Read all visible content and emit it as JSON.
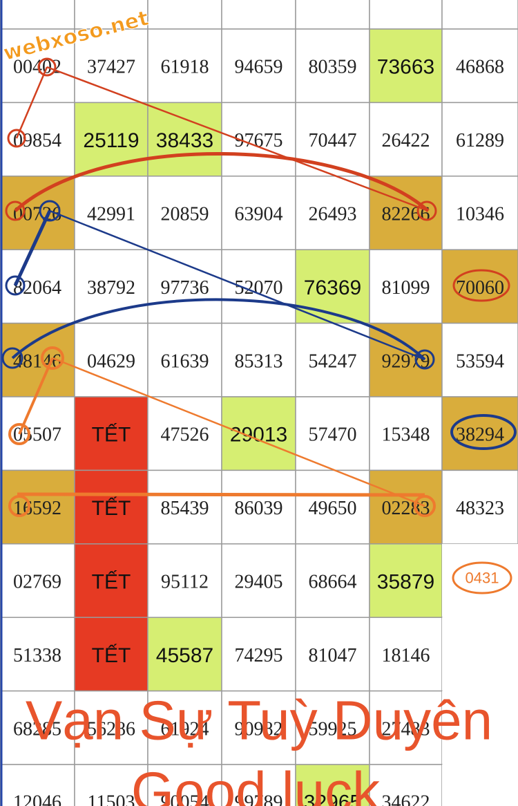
{
  "watermark": "webxoso.net",
  "note": "0431",
  "caption": [
    "Vạn Sự Tuỳ Duyên",
    "Good luck"
  ],
  "table": {
    "rows": [
      [
        null,
        null,
        null,
        null,
        null,
        null,
        null
      ],
      [
        "00402",
        "37427",
        "61918",
        "94659",
        "80359",
        {
          "text": "73663",
          "fill": "#d6ee72"
        },
        "46868"
      ],
      [
        "09854",
        {
          "text": "25119",
          "fill": "#d6ee72"
        },
        {
          "text": "38433",
          "fill": "#d6ee72"
        },
        "97675",
        "70447",
        "26422",
        "61289"
      ],
      [
        {
          "text": "00726",
          "fill": "#d9ad3c"
        },
        "42991",
        "20859",
        "63904",
        "26493",
        {
          "text": "82266",
          "fill": "#d9ad3c"
        },
        "10346"
      ],
      [
        "82064",
        "38792",
        "97736",
        "52070",
        {
          "text": "76369",
          "fill": "#d6ee72"
        },
        "81099",
        {
          "text": "70060",
          "fill": "#d9ad3c"
        }
      ],
      [
        {
          "text": "48146",
          "fill": "#d9ad3c"
        },
        "04629",
        "61639",
        "85313",
        "54247",
        {
          "text": "92979",
          "fill": "#d9ad3c"
        },
        "53594"
      ],
      [
        "05507",
        {
          "text": "TẾT",
          "fill": "#e63a23"
        },
        "47526",
        {
          "text": "29013",
          "fill": "#d6ee72"
        },
        "57470",
        "15348",
        {
          "text": "38294",
          "fill": "#d9ad3c"
        }
      ],
      [
        {
          "text": "16592",
          "fill": "#d9ad3c"
        },
        {
          "text": "TẾT",
          "fill": "#e63a23"
        },
        "85439",
        "86039",
        "49650",
        {
          "text": "02283",
          "fill": "#d9ad3c"
        },
        "48323"
      ],
      [
        "02769",
        {
          "text": "TẾT",
          "fill": "#e63a23"
        },
        "95112",
        "29405",
        "68664",
        {
          "text": "35879",
          "fill": "#d6ee72"
        },
        null
      ],
      [
        "51338",
        {
          "text": "TẾT",
          "fill": "#e63a23"
        },
        {
          "text": "45587",
          "fill": "#d6ee72"
        },
        "74295",
        "81047",
        "18146",
        null
      ],
      [
        "68285",
        "56286",
        "61924",
        "90982",
        "59925",
        "27483",
        null
      ],
      [
        "12046",
        "11503",
        "90054",
        "99789",
        {
          "text": "32965",
          "fill": "#d6ee72"
        },
        "34622",
        null
      ]
    ]
  }
}
